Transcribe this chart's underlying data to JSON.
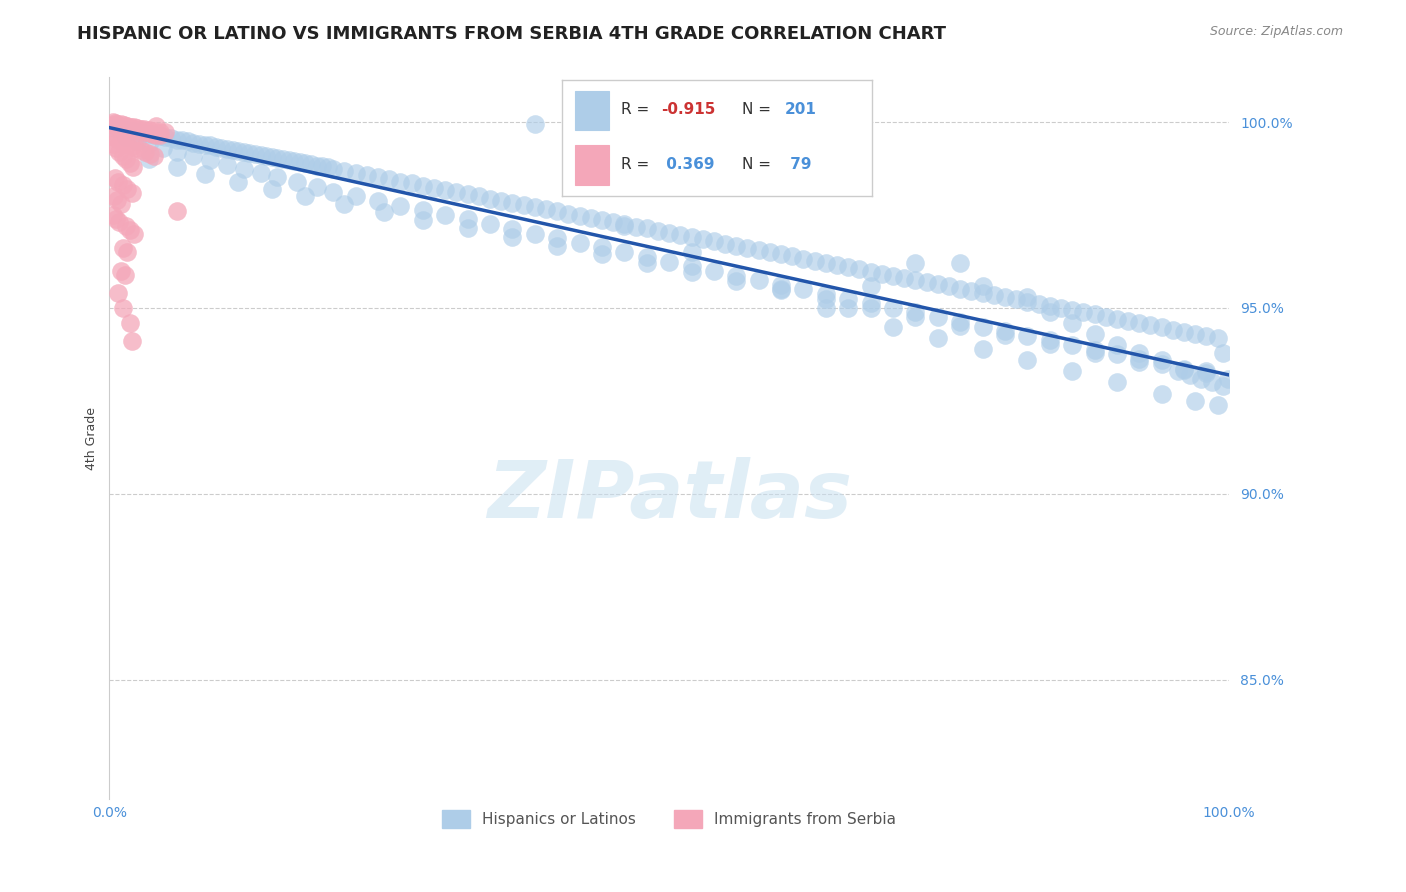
{
  "title": "HISPANIC OR LATINO VS IMMIGRANTS FROM SERBIA 4TH GRADE CORRELATION CHART",
  "source_text": "Source: ZipAtlas.com",
  "ylabel": "4th Grade",
  "y_tick_values": [
    0.85,
    0.9,
    0.95,
    1.0
  ],
  "x_lim": [
    0.0,
    1.0
  ],
  "y_lim": [
    0.818,
    1.012
  ],
  "watermark": "ZIPatlas",
  "scatter_blue_color": "#aecde8",
  "scatter_pink_color": "#f4a7b9",
  "trendline_color": "#2255aa",
  "trendline_blue_x0": 0.0,
  "trendline_blue_y0": 0.9985,
  "trendline_blue_x1": 1.0,
  "trendline_blue_y1": 0.932,
  "grid_color": "#cccccc",
  "background_color": "#ffffff",
  "title_fontsize": 13,
  "axis_label_fontsize": 9,
  "tick_fontsize": 10,
  "blue_r": "-0.915",
  "blue_n": "201",
  "pink_r": "0.369",
  "pink_n": "79",
  "blue_dots": [
    [
      0.005,
      0.9985
    ],
    [
      0.01,
      0.9982
    ],
    [
      0.015,
      0.9979
    ],
    [
      0.02,
      0.9976
    ],
    [
      0.025,
      0.9973
    ],
    [
      0.03,
      0.997
    ],
    [
      0.035,
      0.9968
    ],
    [
      0.04,
      0.9965
    ],
    [
      0.045,
      0.9962
    ],
    [
      0.05,
      0.9959
    ],
    [
      0.055,
      0.9956
    ],
    [
      0.06,
      0.9953
    ],
    [
      0.065,
      0.9951
    ],
    [
      0.07,
      0.9948
    ],
    [
      0.075,
      0.9945
    ],
    [
      0.08,
      0.9942
    ],
    [
      0.085,
      0.9939
    ],
    [
      0.09,
      0.9937
    ],
    [
      0.095,
      0.9934
    ],
    [
      0.1,
      0.9931
    ],
    [
      0.105,
      0.9928
    ],
    [
      0.11,
      0.9925
    ],
    [
      0.115,
      0.9923
    ],
    [
      0.12,
      0.992
    ],
    [
      0.125,
      0.9917
    ],
    [
      0.13,
      0.9914
    ],
    [
      0.135,
      0.9911
    ],
    [
      0.14,
      0.9909
    ],
    [
      0.145,
      0.9906
    ],
    [
      0.15,
      0.9903
    ],
    [
      0.155,
      0.99
    ],
    [
      0.16,
      0.9897
    ],
    [
      0.165,
      0.9895
    ],
    [
      0.17,
      0.9892
    ],
    [
      0.175,
      0.9889
    ],
    [
      0.18,
      0.9886
    ],
    [
      0.185,
      0.9883
    ],
    [
      0.19,
      0.9881
    ],
    [
      0.195,
      0.9878
    ],
    [
      0.2,
      0.9875
    ],
    [
      0.21,
      0.9869
    ],
    [
      0.22,
      0.9863
    ],
    [
      0.23,
      0.9858
    ],
    [
      0.24,
      0.9852
    ],
    [
      0.25,
      0.9846
    ],
    [
      0.26,
      0.984
    ],
    [
      0.27,
      0.9835
    ],
    [
      0.28,
      0.9829
    ],
    [
      0.29,
      0.9823
    ],
    [
      0.3,
      0.9817
    ],
    [
      0.31,
      0.9812
    ],
    [
      0.32,
      0.9806
    ],
    [
      0.33,
      0.98
    ],
    [
      0.34,
      0.9794
    ],
    [
      0.35,
      0.9788
    ],
    [
      0.36,
      0.9783
    ],
    [
      0.37,
      0.9777
    ],
    [
      0.38,
      0.9771
    ],
    [
      0.39,
      0.9765
    ],
    [
      0.4,
      0.976
    ],
    [
      0.41,
      0.9754
    ],
    [
      0.42,
      0.9748
    ],
    [
      0.43,
      0.9742
    ],
    [
      0.44,
      0.9737
    ],
    [
      0.45,
      0.9731
    ],
    [
      0.46,
      0.9725
    ],
    [
      0.47,
      0.9719
    ],
    [
      0.48,
      0.9714
    ],
    [
      0.49,
      0.9708
    ],
    [
      0.5,
      0.9702
    ],
    [
      0.51,
      0.9696
    ],
    [
      0.52,
      0.969
    ],
    [
      0.53,
      0.9685
    ],
    [
      0.54,
      0.9679
    ],
    [
      0.55,
      0.9673
    ],
    [
      0.56,
      0.9667
    ],
    [
      0.57,
      0.9662
    ],
    [
      0.58,
      0.9656
    ],
    [
      0.59,
      0.965
    ],
    [
      0.6,
      0.9644
    ],
    [
      0.61,
      0.9639
    ],
    [
      0.62,
      0.9633
    ],
    [
      0.63,
      0.9627
    ],
    [
      0.64,
      0.9621
    ],
    [
      0.65,
      0.9615
    ],
    [
      0.66,
      0.961
    ],
    [
      0.67,
      0.9604
    ],
    [
      0.68,
      0.9598
    ],
    [
      0.69,
      0.9592
    ],
    [
      0.7,
      0.9587
    ],
    [
      0.71,
      0.9581
    ],
    [
      0.72,
      0.9575
    ],
    [
      0.73,
      0.9569
    ],
    [
      0.74,
      0.9564
    ],
    [
      0.75,
      0.9558
    ],
    [
      0.76,
      0.9552
    ],
    [
      0.77,
      0.9546
    ],
    [
      0.78,
      0.954
    ],
    [
      0.79,
      0.9535
    ],
    [
      0.8,
      0.9529
    ],
    [
      0.81,
      0.9523
    ],
    [
      0.82,
      0.9517
    ],
    [
      0.83,
      0.9512
    ],
    [
      0.84,
      0.9506
    ],
    [
      0.85,
      0.95
    ],
    [
      0.86,
      0.9494
    ],
    [
      0.87,
      0.9488
    ],
    [
      0.88,
      0.9483
    ],
    [
      0.89,
      0.9477
    ],
    [
      0.9,
      0.9471
    ],
    [
      0.91,
      0.9465
    ],
    [
      0.92,
      0.946
    ],
    [
      0.93,
      0.9454
    ],
    [
      0.94,
      0.9448
    ],
    [
      0.95,
      0.9442
    ],
    [
      0.96,
      0.9436
    ],
    [
      0.97,
      0.9431
    ],
    [
      0.98,
      0.9425
    ],
    [
      0.99,
      0.9419
    ],
    [
      0.015,
      0.996
    ],
    [
      0.025,
      0.995
    ],
    [
      0.035,
      0.9942
    ],
    [
      0.048,
      0.993
    ],
    [
      0.06,
      0.992
    ],
    [
      0.075,
      0.9908
    ],
    [
      0.09,
      0.9897
    ],
    [
      0.105,
      0.9885
    ],
    [
      0.12,
      0.9874
    ],
    [
      0.135,
      0.9862
    ],
    [
      0.15,
      0.9851
    ],
    [
      0.168,
      0.9838
    ],
    [
      0.185,
      0.9825
    ],
    [
      0.2,
      0.9813
    ],
    [
      0.22,
      0.98
    ],
    [
      0.24,
      0.9788
    ],
    [
      0.26,
      0.9775
    ],
    [
      0.28,
      0.9763
    ],
    [
      0.3,
      0.975
    ],
    [
      0.32,
      0.9738
    ],
    [
      0.34,
      0.9725
    ],
    [
      0.36,
      0.9712
    ],
    [
      0.38,
      0.97
    ],
    [
      0.4,
      0.9688
    ],
    [
      0.42,
      0.9675
    ],
    [
      0.44,
      0.9663
    ],
    [
      0.46,
      0.965
    ],
    [
      0.48,
      0.9638
    ],
    [
      0.5,
      0.9625
    ],
    [
      0.52,
      0.9613
    ],
    [
      0.54,
      0.96
    ],
    [
      0.56,
      0.9587
    ],
    [
      0.58,
      0.9575
    ],
    [
      0.6,
      0.9563
    ],
    [
      0.62,
      0.955
    ],
    [
      0.64,
      0.9537
    ],
    [
      0.66,
      0.9525
    ],
    [
      0.68,
      0.9513
    ],
    [
      0.7,
      0.95
    ],
    [
      0.72,
      0.9488
    ],
    [
      0.74,
      0.9475
    ],
    [
      0.76,
      0.9463
    ],
    [
      0.78,
      0.945
    ],
    [
      0.8,
      0.9438
    ],
    [
      0.82,
      0.9425
    ],
    [
      0.84,
      0.9413
    ],
    [
      0.86,
      0.94
    ],
    [
      0.88,
      0.9387
    ],
    [
      0.9,
      0.9375
    ],
    [
      0.92,
      0.9363
    ],
    [
      0.94,
      0.935
    ],
    [
      0.96,
      0.9337
    ],
    [
      0.98,
      0.9325
    ],
    [
      0.035,
      0.99
    ],
    [
      0.06,
      0.988
    ],
    [
      0.085,
      0.986
    ],
    [
      0.115,
      0.984
    ],
    [
      0.145,
      0.982
    ],
    [
      0.175,
      0.98
    ],
    [
      0.21,
      0.978
    ],
    [
      0.245,
      0.9758
    ],
    [
      0.28,
      0.9736
    ],
    [
      0.32,
      0.9714
    ],
    [
      0.36,
      0.9692
    ],
    [
      0.4,
      0.9668
    ],
    [
      0.44,
      0.9644
    ],
    [
      0.48,
      0.962
    ],
    [
      0.52,
      0.9596
    ],
    [
      0.56,
      0.9572
    ],
    [
      0.6,
      0.9548
    ],
    [
      0.64,
      0.9524
    ],
    [
      0.68,
      0.95
    ],
    [
      0.72,
      0.9476
    ],
    [
      0.76,
      0.9452
    ],
    [
      0.8,
      0.9428
    ],
    [
      0.84,
      0.9404
    ],
    [
      0.88,
      0.938
    ],
    [
      0.92,
      0.9356
    ],
    [
      0.96,
      0.9332
    ],
    [
      0.999,
      0.9308
    ],
    [
      0.38,
      0.9995
    ],
    [
      0.46,
      0.972
    ],
    [
      0.52,
      0.965
    ],
    [
      0.6,
      0.955
    ],
    [
      0.64,
      0.95
    ],
    [
      0.68,
      0.956
    ],
    [
      0.72,
      0.962
    ],
    [
      0.76,
      0.962
    ],
    [
      0.78,
      0.956
    ],
    [
      0.82,
      0.953
    ],
    [
      0.84,
      0.949
    ],
    [
      0.86,
      0.946
    ],
    [
      0.88,
      0.943
    ],
    [
      0.9,
      0.94
    ],
    [
      0.92,
      0.938
    ],
    [
      0.94,
      0.936
    ],
    [
      0.955,
      0.933
    ],
    [
      0.965,
      0.932
    ],
    [
      0.975,
      0.931
    ],
    [
      0.985,
      0.93
    ],
    [
      0.995,
      0.929
    ],
    [
      0.995,
      0.938
    ],
    [
      0.98,
      0.933
    ],
    [
      0.66,
      0.95
    ],
    [
      0.7,
      0.945
    ],
    [
      0.74,
      0.942
    ],
    [
      0.78,
      0.939
    ],
    [
      0.82,
      0.936
    ],
    [
      0.86,
      0.933
    ],
    [
      0.9,
      0.93
    ],
    [
      0.94,
      0.927
    ],
    [
      0.97,
      0.925
    ],
    [
      0.99,
      0.924
    ]
  ],
  "pink_dots": [
    [
      0.003,
      0.9992
    ],
    [
      0.006,
      0.999
    ],
    [
      0.009,
      0.9988
    ],
    [
      0.012,
      0.9986
    ],
    [
      0.015,
      0.9984
    ],
    [
      0.018,
      0.9982
    ],
    [
      0.021,
      0.998
    ],
    [
      0.024,
      0.9978
    ],
    [
      0.027,
      0.9976
    ],
    [
      0.03,
      0.9974
    ],
    [
      0.033,
      0.9972
    ],
    [
      0.036,
      0.997
    ],
    [
      0.039,
      0.9968
    ],
    [
      0.042,
      0.9966
    ],
    [
      0.045,
      0.9964
    ],
    [
      0.003,
      1.0
    ],
    [
      0.005,
      0.9998
    ],
    [
      0.007,
      0.9996
    ],
    [
      0.01,
      0.9994
    ],
    [
      0.013,
      0.9992
    ],
    [
      0.016,
      0.999
    ],
    [
      0.019,
      0.9988
    ],
    [
      0.022,
      0.9986
    ],
    [
      0.025,
      0.9984
    ],
    [
      0.028,
      0.9982
    ],
    [
      0.031,
      0.998
    ],
    [
      0.035,
      0.9978
    ],
    [
      0.04,
      0.9976
    ],
    [
      0.045,
      0.9974
    ],
    [
      0.05,
      0.9972
    ],
    [
      0.004,
      0.996
    ],
    [
      0.007,
      0.9955
    ],
    [
      0.01,
      0.995
    ],
    [
      0.013,
      0.9945
    ],
    [
      0.016,
      0.994
    ],
    [
      0.02,
      0.9935
    ],
    [
      0.024,
      0.993
    ],
    [
      0.028,
      0.9925
    ],
    [
      0.032,
      0.992
    ],
    [
      0.036,
      0.9915
    ],
    [
      0.04,
      0.991
    ],
    [
      0.003,
      0.994
    ],
    [
      0.006,
      0.993
    ],
    [
      0.009,
      0.992
    ],
    [
      0.012,
      0.991
    ],
    [
      0.015,
      0.99
    ],
    [
      0.018,
      0.989
    ],
    [
      0.021,
      0.988
    ],
    [
      0.005,
      0.985
    ],
    [
      0.008,
      0.984
    ],
    [
      0.012,
      0.983
    ],
    [
      0.016,
      0.982
    ],
    [
      0.02,
      0.981
    ],
    [
      0.004,
      0.98
    ],
    [
      0.007,
      0.979
    ],
    [
      0.01,
      0.978
    ],
    [
      0.003,
      0.975
    ],
    [
      0.006,
      0.974
    ],
    [
      0.009,
      0.973
    ],
    [
      0.015,
      0.972
    ],
    [
      0.018,
      0.971
    ],
    [
      0.022,
      0.97
    ],
    [
      0.012,
      0.966
    ],
    [
      0.016,
      0.965
    ],
    [
      0.01,
      0.96
    ],
    [
      0.014,
      0.959
    ],
    [
      0.008,
      0.954
    ],
    [
      0.012,
      0.95
    ],
    [
      0.018,
      0.946
    ],
    [
      0.02,
      0.941
    ],
    [
      0.06,
      0.976
    ],
    [
      0.042,
      0.999
    ]
  ]
}
